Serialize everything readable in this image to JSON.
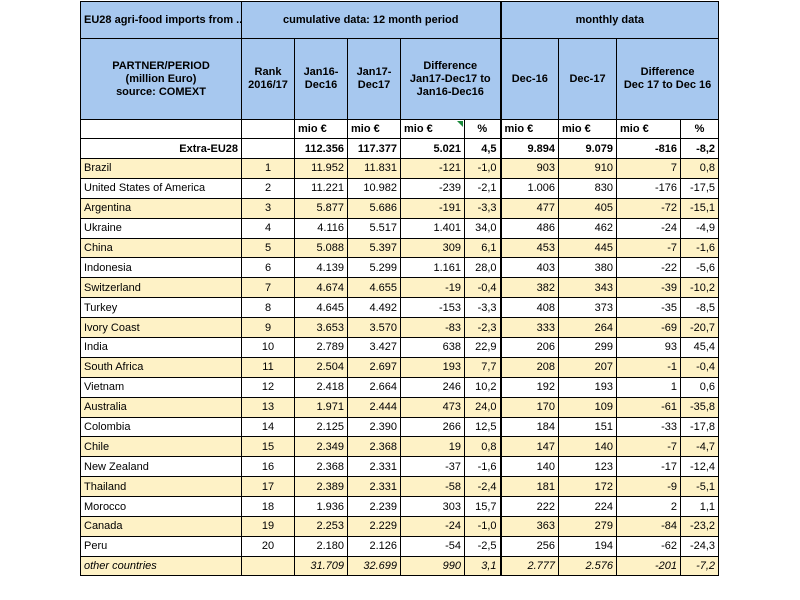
{
  "header": {
    "top_left": "EU28 agri-food imports from ....",
    "cumulative": "cumulative data: 12 month period",
    "monthly": "monthly data",
    "partner_line1": "PARTNER/PERIOD",
    "partner_line2": "(million Euro)",
    "partner_line3": "source: COMEXT",
    "rank_line1": "Rank",
    "rank_line2": "2016/17",
    "jan16_line1": "Jan16-",
    "jan16_line2": "Dec16",
    "jan17_line1": "Jan17-",
    "jan17_line2": "Dec17",
    "diff_line1": "Difference",
    "diff_line2": "Jan17-Dec17 to",
    "diff_line3": "Jan16-Dec16",
    "dec16": "Dec-16",
    "dec17": "Dec-17",
    "mdiff_line1": "Difference",
    "mdiff_line2": "Dec 17 to Dec 16"
  },
  "units": [
    "mio €",
    "mio €",
    "mio €",
    "%",
    "mio €",
    "mio €",
    "mio €",
    "%"
  ],
  "total": {
    "label": "Extra-EU28",
    "values": [
      "112.356",
      "117.377",
      "5.021",
      "4,5",
      "9.894",
      "9.079",
      "-816",
      "-8,2"
    ]
  },
  "rows": [
    [
      "Brazil",
      "1",
      "11.952",
      "11.831",
      "-121",
      "-1,0",
      "903",
      "910",
      "7",
      "0,8"
    ],
    [
      "United States of America",
      "2",
      "11.221",
      "10.982",
      "-239",
      "-2,1",
      "1.006",
      "830",
      "-176",
      "-17,5"
    ],
    [
      "Argentina",
      "3",
      "5.877",
      "5.686",
      "-191",
      "-3,3",
      "477",
      "405",
      "-72",
      "-15,1"
    ],
    [
      "Ukraine",
      "4",
      "4.116",
      "5.517",
      "1.401",
      "34,0",
      "486",
      "462",
      "-24",
      "-4,9"
    ],
    [
      "China",
      "5",
      "5.088",
      "5.397",
      "309",
      "6,1",
      "453",
      "445",
      "-7",
      "-1,6"
    ],
    [
      "Indonesia",
      "6",
      "4.139",
      "5.299",
      "1.161",
      "28,0",
      "403",
      "380",
      "-22",
      "-5,6"
    ],
    [
      "Switzerland",
      "7",
      "4.674",
      "4.655",
      "-19",
      "-0,4",
      "382",
      "343",
      "-39",
      "-10,2"
    ],
    [
      "Turkey",
      "8",
      "4.645",
      "4.492",
      "-153",
      "-3,3",
      "408",
      "373",
      "-35",
      "-8,5"
    ],
    [
      "Ivory Coast",
      "9",
      "3.653",
      "3.570",
      "-83",
      "-2,3",
      "333",
      "264",
      "-69",
      "-20,7"
    ],
    [
      "India",
      "10",
      "2.789",
      "3.427",
      "638",
      "22,9",
      "206",
      "299",
      "93",
      "45,4"
    ],
    [
      "South Africa",
      "11",
      "2.504",
      "2.697",
      "193",
      "7,7",
      "208",
      "207",
      "-1",
      "-0,4"
    ],
    [
      "Vietnam",
      "12",
      "2.418",
      "2.664",
      "246",
      "10,2",
      "192",
      "193",
      "1",
      "0,6"
    ],
    [
      "Australia",
      "13",
      "1.971",
      "2.444",
      "473",
      "24,0",
      "170",
      "109",
      "-61",
      "-35,8"
    ],
    [
      "Colombia",
      "14",
      "2.125",
      "2.390",
      "266",
      "12,5",
      "184",
      "151",
      "-33",
      "-17,8"
    ],
    [
      "Chile",
      "15",
      "2.349",
      "2.368",
      "19",
      "0,8",
      "147",
      "140",
      "-7",
      "-4,7"
    ],
    [
      "New Zealand",
      "16",
      "2.368",
      "2.331",
      "-37",
      "-1,6",
      "140",
      "123",
      "-17",
      "-12,4"
    ],
    [
      "Thailand",
      "17",
      "2.389",
      "2.331",
      "-58",
      "-2,4",
      "181",
      "172",
      "-9",
      "-5,1"
    ],
    [
      "Morocco",
      "18",
      "1.936",
      "2.239",
      "303",
      "15,7",
      "222",
      "224",
      "2",
      "1,1"
    ],
    [
      "Canada",
      "19",
      "2.253",
      "2.229",
      "-24",
      "-1,0",
      "363",
      "279",
      "-84",
      "-23,2"
    ],
    [
      "Peru",
      "20",
      "2.180",
      "2.126",
      "-54",
      "-2,5",
      "256",
      "194",
      "-62",
      "-24,3"
    ]
  ],
  "other": {
    "label": "other countries",
    "values": [
      "31.709",
      "32.699",
      "990",
      "3,1",
      "2.777",
      "2.576",
      "-201",
      "-7,2"
    ]
  },
  "colors": {
    "header_fill": "#a7c8ef",
    "stripe_fill": "#fef2c6",
    "plain_fill": "#ffffff"
  }
}
